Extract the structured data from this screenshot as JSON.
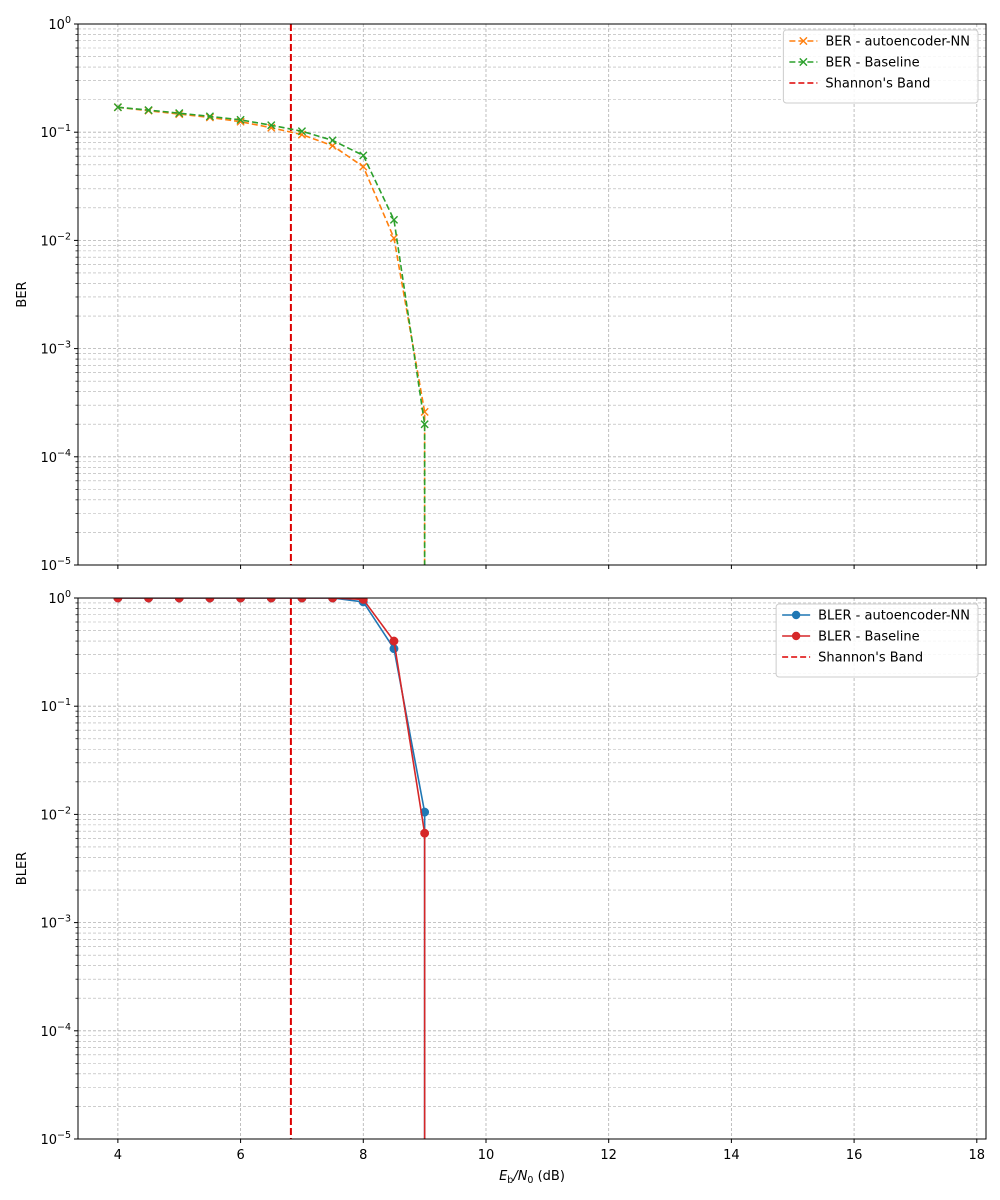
{
  "chart_data": [
    {
      "type": "line",
      "yscale": "log",
      "ylabel": "BER",
      "xlim": [
        3.35,
        18.15
      ],
      "ylim": [
        1e-05,
        1
      ],
      "xticks": [
        4,
        6,
        8,
        10,
        12,
        14,
        16,
        18
      ],
      "yticks": [
        1e-05,
        0.0001,
        0.001,
        0.01,
        0.1,
        1
      ],
      "grid": true,
      "legend": "top-right",
      "series": [
        {
          "name": "BER - autoencoder-NN",
          "color": "#ff7f0e",
          "linestyle": "dashed",
          "marker": "x",
          "x": [
            4,
            4.5,
            5,
            5.5,
            6,
            6.5,
            7,
            7.5,
            8,
            8.5,
            9
          ],
          "y": [
            0.17,
            0.158,
            0.147,
            0.137,
            0.125,
            0.11,
            0.095,
            0.075,
            0.048,
            0.0105,
            0.00026
          ],
          "drop_to_floor_at_x": 9
        },
        {
          "name": "BER - Baseline",
          "color": "#2ca02c",
          "linestyle": "dashed",
          "marker": "x",
          "x": [
            4,
            4.5,
            5,
            5.5,
            6,
            6.5,
            7,
            7.5,
            8,
            8.5,
            9
          ],
          "y": [
            0.17,
            0.16,
            0.15,
            0.14,
            0.13,
            0.116,
            0.102,
            0.084,
            0.061,
            0.0155,
            0.0002
          ],
          "drop_to_floor_at_x": 9
        }
      ],
      "vlines": [
        {
          "name": "Shannon's Band",
          "x": 6.82,
          "color": "#dd0000",
          "linestyle": "dashed"
        }
      ]
    },
    {
      "type": "line",
      "yscale": "log",
      "ylabel": "BLER",
      "xlabel_main": "E",
      "xlabel_sub1": "b",
      "xlabel_slash": "/N",
      "xlabel_sub2": "0",
      "xlabel_unit": " (dB)",
      "xlim": [
        3.35,
        18.15
      ],
      "ylim": [
        1e-05,
        1
      ],
      "xticks": [
        4,
        6,
        8,
        10,
        12,
        14,
        16,
        18
      ],
      "yticks": [
        1e-05,
        0.0001,
        0.001,
        0.01,
        0.1,
        1
      ],
      "grid": true,
      "legend": "top-right",
      "series": [
        {
          "name": "BLER - autoencoder-NN",
          "color": "#1f77b4",
          "linestyle": "solid",
          "marker": "o",
          "x": [
            4,
            4.5,
            5,
            5.5,
            6,
            6.5,
            7,
            7.5,
            8,
            8.5,
            9
          ],
          "y": [
            1,
            1,
            1,
            1,
            1,
            1,
            1,
            1,
            0.92,
            0.34,
            0.0105
          ],
          "drop_to_floor_at_x": 9
        },
        {
          "name": "BLER - Baseline",
          "color": "#d62728",
          "linestyle": "solid",
          "marker": "o",
          "x": [
            4,
            4.5,
            5,
            5.5,
            6,
            6.5,
            7,
            7.5,
            8,
            8.5,
            9
          ],
          "y": [
            1,
            1,
            1,
            1,
            1,
            1,
            1,
            1,
            0.97,
            0.4,
            0.0067
          ],
          "drop_to_floor_at_x": 9
        }
      ],
      "vlines": [
        {
          "name": "Shannon's Band",
          "x": 6.82,
          "color": "#dd0000",
          "linestyle": "dashed"
        }
      ]
    }
  ]
}
